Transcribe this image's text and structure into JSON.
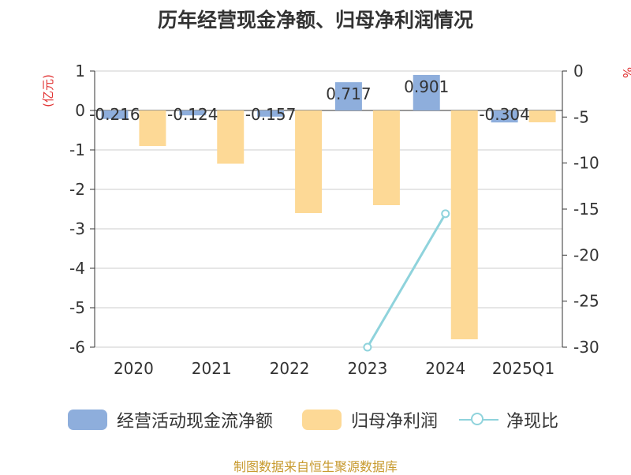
{
  "chart_data": {
    "type": "bar",
    "title": "历年经营现金净额、归母净利润情况",
    "categories": [
      "2020",
      "2021",
      "2022",
      "2023",
      "2024",
      "2025Q1"
    ],
    "y_left": {
      "label": "(亿元)",
      "ticks": [
        "1",
        "0",
        "-1",
        "-2",
        "-3",
        "-4",
        "-5",
        "-6"
      ],
      "range": [
        -6,
        1
      ]
    },
    "y_right": {
      "label": "%",
      "ticks": [
        "0",
        "-5",
        "-10",
        "-15",
        "-20",
        "-25",
        "-30"
      ],
      "range": [
        -30,
        0
      ]
    },
    "grid": true,
    "legend_position": "bottom",
    "series": [
      {
        "name": "经营活动现金流净额",
        "type": "bar",
        "axis": "left",
        "color": "#8eaedc",
        "values": [
          -0.216,
          -0.124,
          -0.157,
          0.717,
          0.901,
          -0.304
        ],
        "labels": [
          "-0.216",
          "-0.124",
          "-0.157",
          "0.717",
          "0.901",
          "-0.304"
        ]
      },
      {
        "name": "归母净利润",
        "type": "bar",
        "axis": "left",
        "color": "#fdd996",
        "values": [
          -0.9,
          -1.35,
          -2.6,
          -2.4,
          -5.8,
          -0.3
        ]
      },
      {
        "name": "净现比",
        "type": "line",
        "axis": "right",
        "color": "#8fd3dc",
        "values": [
          null,
          null,
          null,
          -30,
          -15.5,
          null
        ]
      }
    ]
  },
  "source_note": "制图数据来自恒生聚源数据库"
}
